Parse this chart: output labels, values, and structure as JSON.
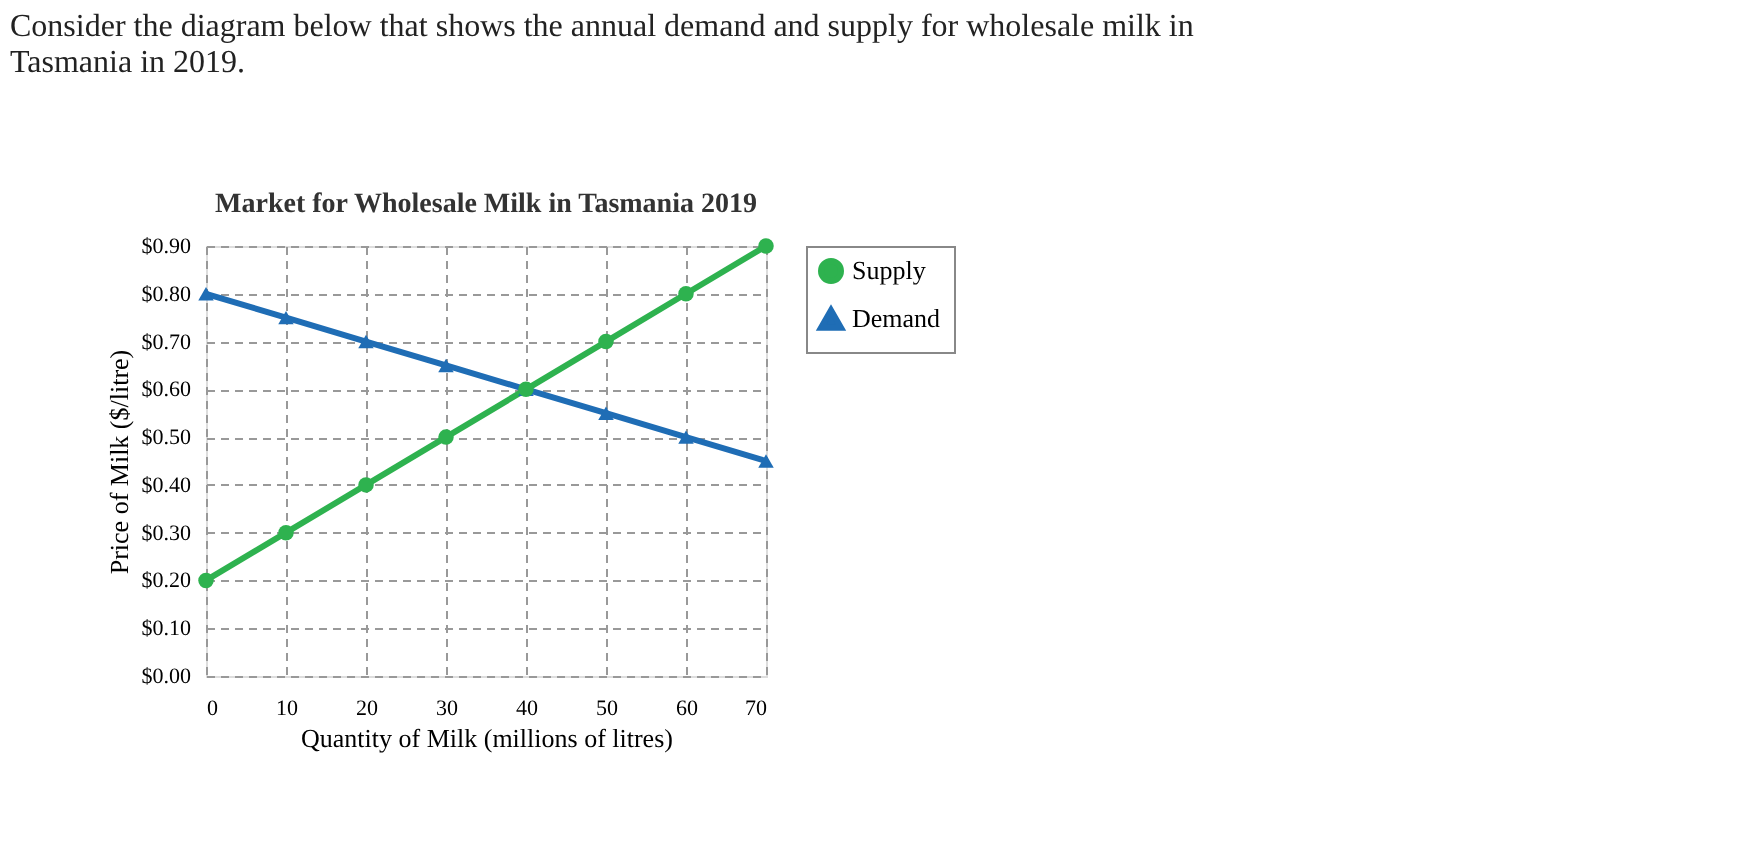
{
  "chart_data": {
    "type": "line",
    "title": "Market for Wholesale Milk in Tasmania 2019",
    "xlabel": "Quantity of Milk (millions of litres)",
    "ylabel": "Price of Milk ($/litre)",
    "annotations": [
      "Consider the diagram below that shows the annual demand and supply for wholesale milk in Tasmania in 2019."
    ],
    "x": [
      0,
      10,
      20,
      30,
      40,
      50,
      60,
      70
    ],
    "series": [
      {
        "name": "Supply",
        "color": "#2eb24f",
        "marker": "circle",
        "values": [
          0.2,
          0.3,
          0.4,
          0.5,
          0.6,
          0.7,
          0.8,
          0.9
        ]
      },
      {
        "name": "Demand",
        "color": "#1f6db5",
        "marker": "triangle",
        "values": [
          0.8,
          0.75,
          0.7,
          0.65,
          0.6,
          0.55,
          0.5,
          0.45
        ]
      }
    ],
    "xlim": [
      0,
      70
    ],
    "xticks": [
      0,
      10,
      20,
      30,
      40,
      50,
      60,
      70
    ],
    "ylim": [
      0,
      0.9
    ],
    "yticks": [
      {
        "value": 0,
        "label": "$0.00"
      },
      {
        "value": 0.1,
        "label": "$0.10"
      },
      {
        "value": 0.2,
        "label": "$0.20"
      },
      {
        "value": 0.3,
        "label": "$0.30"
      },
      {
        "value": 0.4,
        "label": "$0.40"
      },
      {
        "value": 0.5,
        "label": "$0.50"
      },
      {
        "value": 0.6,
        "label": "$0.60"
      },
      {
        "value": 0.7,
        "label": "$0.70"
      },
      {
        "value": 0.8,
        "label": "$0.80"
      },
      {
        "value": 0.9,
        "label": "$0.90"
      }
    ],
    "grid": true,
    "legend": "right",
    "line_style": "solid"
  }
}
